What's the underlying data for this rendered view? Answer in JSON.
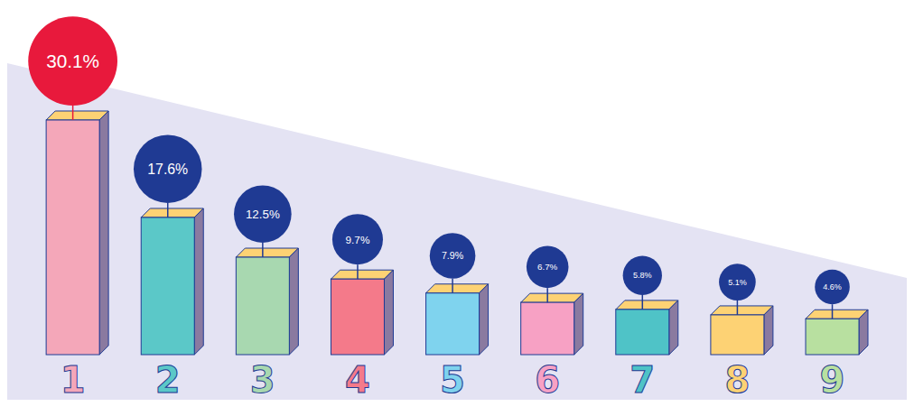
{
  "chart_data": {
    "type": "bar",
    "categories": [
      "1",
      "2",
      "3",
      "4",
      "5",
      "6",
      "7",
      "8",
      "9"
    ],
    "values": [
      30.1,
      17.6,
      12.5,
      9.7,
      7.9,
      6.7,
      5.8,
      5.1,
      4.6
    ],
    "value_labels": [
      "30.1%",
      "17.6%",
      "12.5%",
      "9.7%",
      "7.9%",
      "6.7%",
      "5.8%",
      "5.1%",
      "4.6%"
    ],
    "data_labels": true,
    "tick_labels": "x",
    "grid": false,
    "colors": [
      "#f4a7b9",
      "#5bc8c8",
      "#a8d8b0",
      "#f47a8a",
      "#7fd3ee",
      "#f7a1c4",
      "#4fc3c7",
      "#fdd274",
      "#b8e0a0"
    ]
  }
}
